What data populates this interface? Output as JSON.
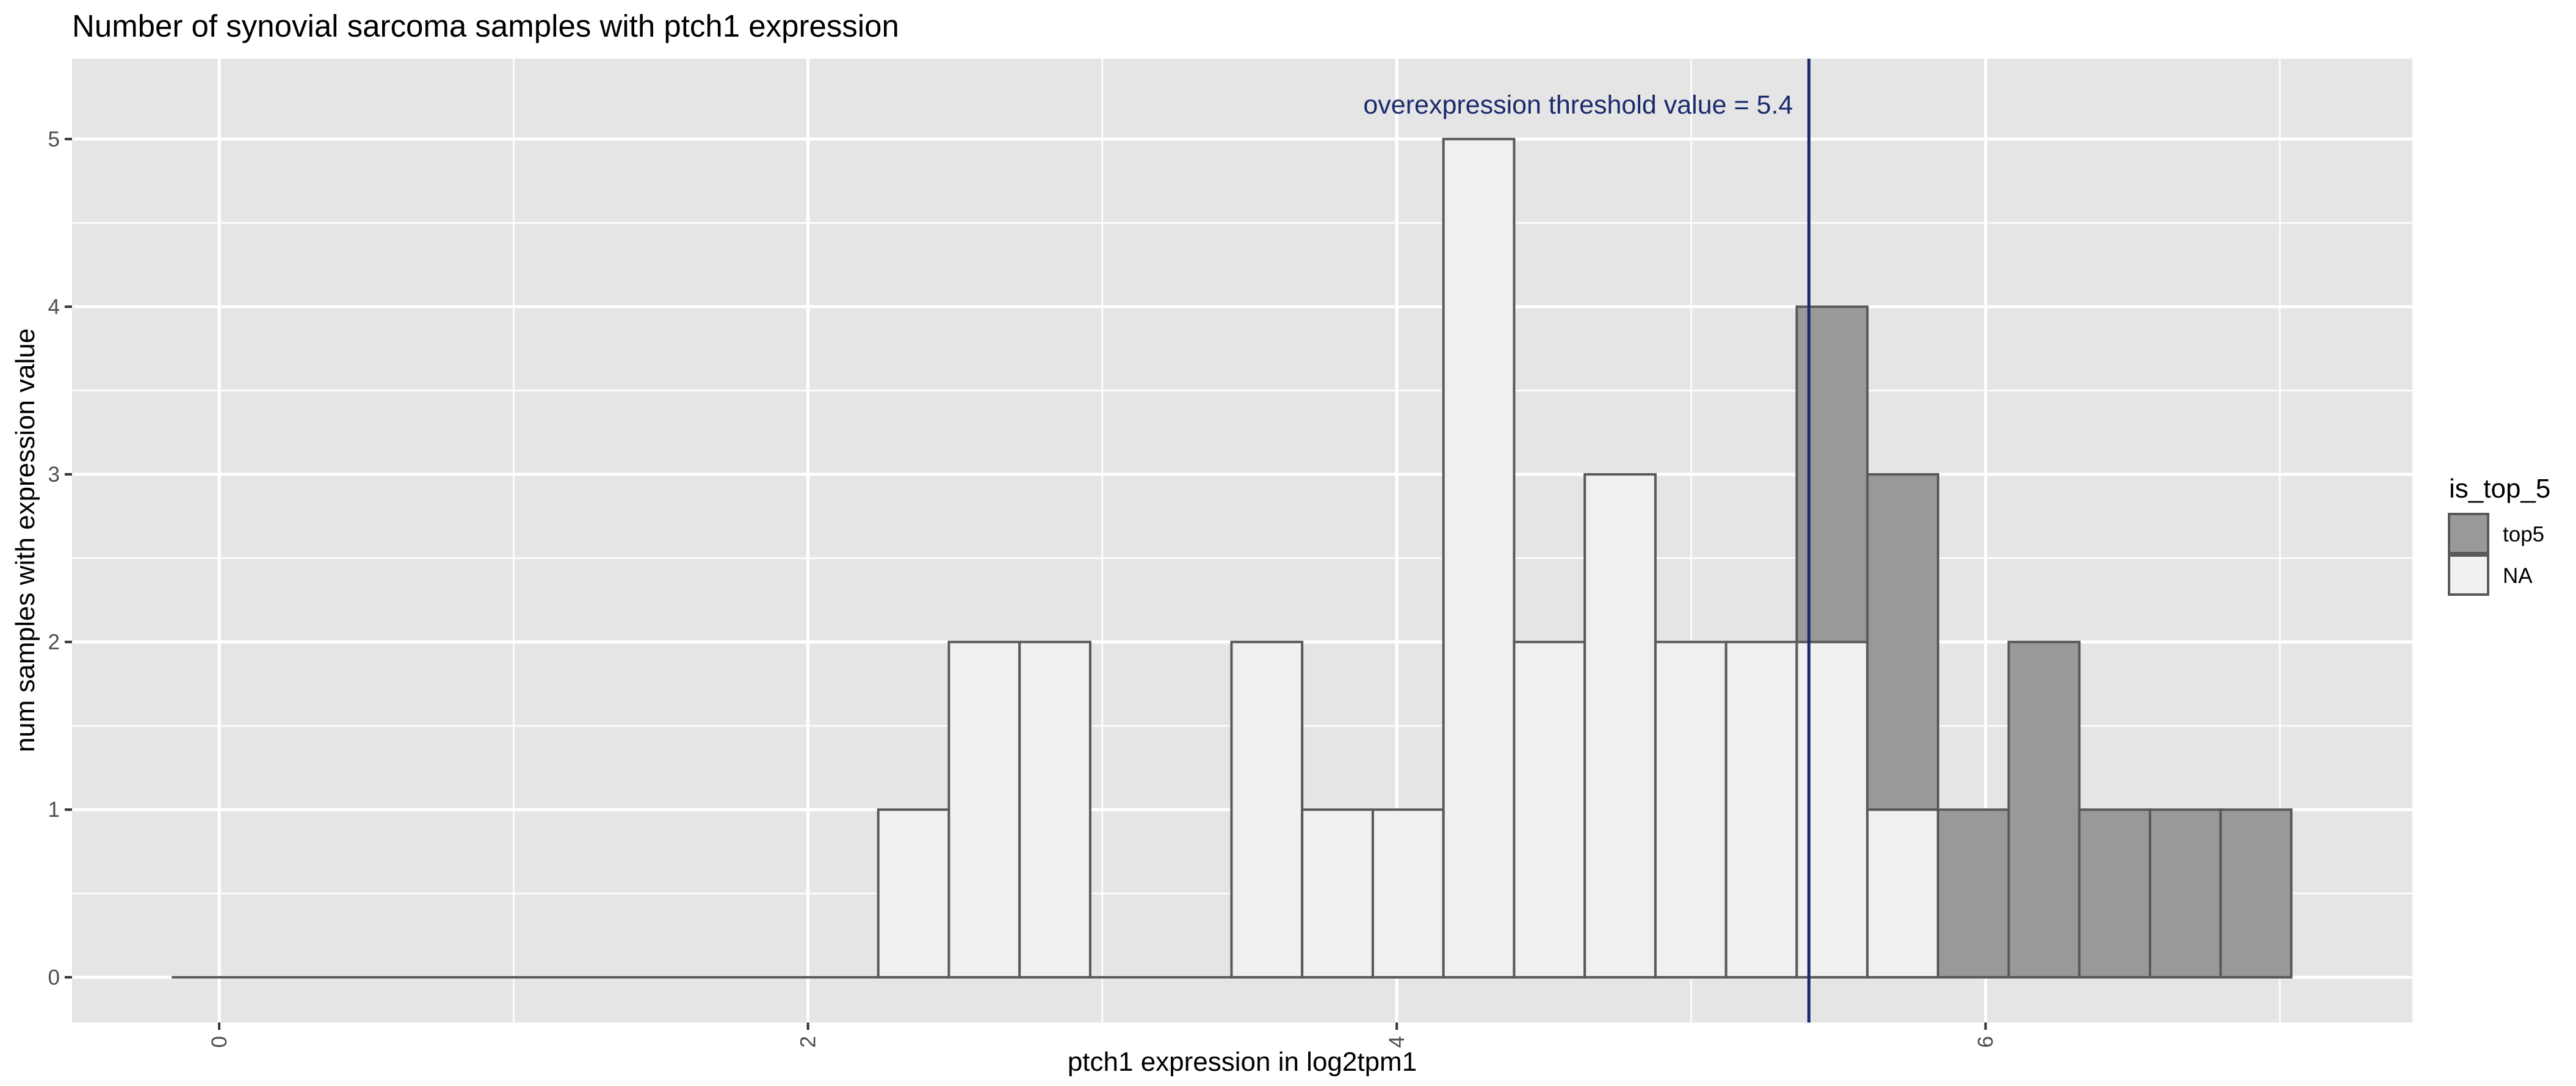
{
  "chart_data": {
    "type": "bar",
    "title": "Number of synovial sarcoma samples with ptch1 expression",
    "xlabel": "ptch1 expression in log2tpm1",
    "ylabel": "num samples with expression value",
    "xlim": [
      -0.5,
      7.45
    ],
    "ylim": [
      -0.27,
      5.48
    ],
    "x_ticks": [
      0,
      2,
      4,
      6
    ],
    "y_ticks": [
      0,
      1,
      2,
      3,
      4,
      5
    ],
    "grid": true,
    "stacked": true,
    "bin_width": 0.24,
    "bins": [
      {
        "x": -0.0414,
        "NA": 0,
        "top5": 0
      },
      {
        "x": 0.1986,
        "NA": 0,
        "top5": 0
      },
      {
        "x": 0.4386,
        "NA": 0,
        "top5": 0
      },
      {
        "x": 0.6786,
        "NA": 0,
        "top5": 0
      },
      {
        "x": 0.9186,
        "NA": 0,
        "top5": 0
      },
      {
        "x": 1.1586,
        "NA": 0,
        "top5": 0
      },
      {
        "x": 1.3986,
        "NA": 0,
        "top5": 0
      },
      {
        "x": 1.6386,
        "NA": 0,
        "top5": 0
      },
      {
        "x": 1.8786,
        "NA": 0,
        "top5": 0
      },
      {
        "x": 2.1186,
        "NA": 0,
        "top5": 0
      },
      {
        "x": 2.3586,
        "NA": 1,
        "top5": 0
      },
      {
        "x": 2.5986,
        "NA": 2,
        "top5": 0
      },
      {
        "x": 2.8386,
        "NA": 2,
        "top5": 0
      },
      {
        "x": 3.0786,
        "NA": 0,
        "top5": 0
      },
      {
        "x": 3.3186,
        "NA": 0,
        "top5": 0
      },
      {
        "x": 3.5586,
        "NA": 2,
        "top5": 0
      },
      {
        "x": 3.7986,
        "NA": 1,
        "top5": 0
      },
      {
        "x": 4.0386,
        "NA": 1,
        "top5": 0
      },
      {
        "x": 4.2786,
        "NA": 5,
        "top5": 0
      },
      {
        "x": 4.5186,
        "NA": 2,
        "top5": 0
      },
      {
        "x": 4.7586,
        "NA": 3,
        "top5": 0
      },
      {
        "x": 4.9986,
        "NA": 2,
        "top5": 0
      },
      {
        "x": 5.2386,
        "NA": 2,
        "top5": 0
      },
      {
        "x": 5.4786,
        "NA": 2,
        "top5": 2
      },
      {
        "x": 5.7186,
        "NA": 1,
        "top5": 2
      },
      {
        "x": 5.9586,
        "NA": 0,
        "top5": 1
      },
      {
        "x": 6.1986,
        "NA": 0,
        "top5": 2
      },
      {
        "x": 6.4386,
        "NA": 0,
        "top5": 1
      },
      {
        "x": 6.6786,
        "NA": 0,
        "top5": 1
      },
      {
        "x": 6.9186,
        "NA": 0,
        "top5": 1
      }
    ],
    "series": [
      {
        "name": "NA",
        "fill": "#f0f0f0"
      },
      {
        "name": "top5",
        "fill": "#999999"
      }
    ],
    "threshold": {
      "value": 5.4,
      "label": "overexpression threshold  value = 5.4",
      "color": "#1a2a6c"
    },
    "legend": {
      "title": "is_top_5",
      "position": "right",
      "entries": [
        {
          "label": "top5",
          "fill": "#999999"
        },
        {
          "label": "NA",
          "fill": "#f0f0f0"
        }
      ]
    },
    "colors": {
      "panel_bg": "#e5e5e5",
      "grid_major": "#ffffff",
      "bar_stroke": "#595959"
    }
  }
}
